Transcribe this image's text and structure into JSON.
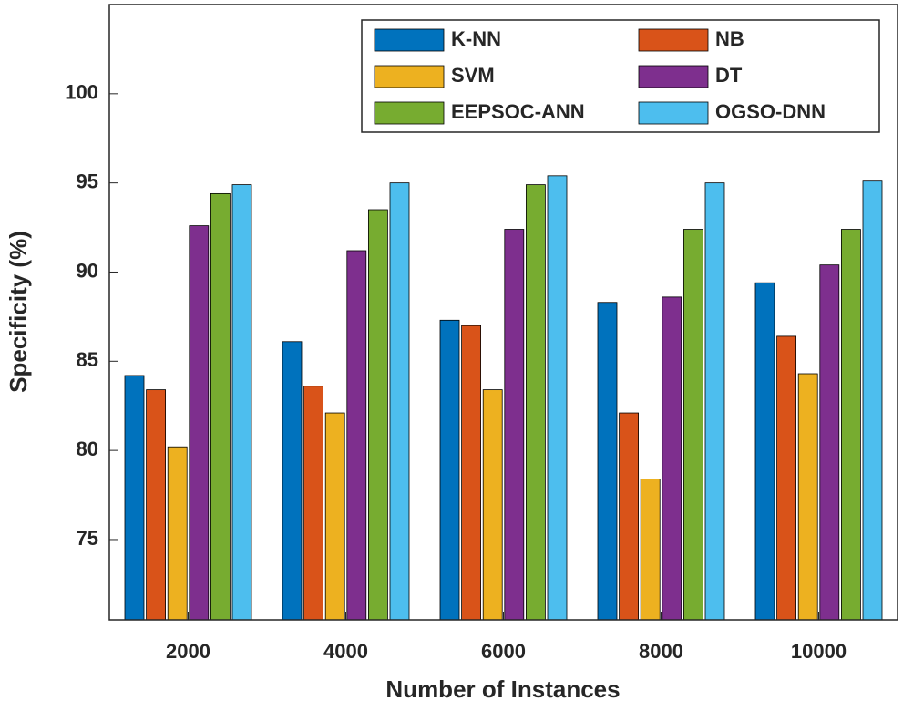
{
  "chart_data": {
    "type": "bar",
    "x_label": "Number of Instances",
    "y_label": "Specificity (%)",
    "categories": [
      "2000",
      "4000",
      "6000",
      "8000",
      "10000"
    ],
    "series": [
      {
        "name": "K-NN",
        "color": "#0072bd",
        "values": [
          84.2,
          86.1,
          87.3,
          88.3,
          89.4
        ]
      },
      {
        "name": "NB",
        "color": "#d95319",
        "values": [
          83.4,
          83.6,
          87.0,
          82.1,
          86.4
        ]
      },
      {
        "name": "SVM",
        "color": "#edb120",
        "values": [
          80.2,
          82.1,
          83.4,
          78.4,
          84.3
        ]
      },
      {
        "name": "DT",
        "color": "#7e2f8e",
        "values": [
          92.6,
          91.2,
          92.4,
          88.6,
          90.4
        ]
      },
      {
        "name": "EEPSOC-ANN",
        "color": "#77ac30",
        "values": [
          94.4,
          93.5,
          94.9,
          92.4,
          92.4
        ]
      },
      {
        "name": "OGSO-DNN",
        "color": "#4dbeee",
        "values": [
          94.9,
          95.0,
          95.4,
          95.0,
          95.1
        ]
      }
    ],
    "ylim": [
      70.5,
      105
    ],
    "yticks": [
      75,
      80,
      85,
      90,
      95,
      100
    ],
    "legend": "top-right"
  }
}
